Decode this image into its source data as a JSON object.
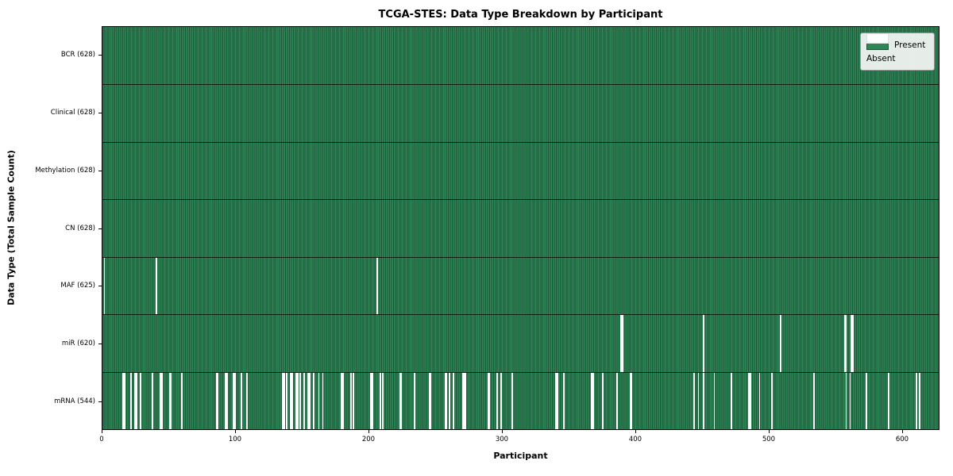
{
  "title": "TCGA-STES: Data Type Breakdown by Participant",
  "xlabel": "Participant",
  "ylabel": "Data Type (Total Sample Count)",
  "legend": {
    "present_label": "Present",
    "absent_label": "Absent"
  },
  "colors": {
    "present": "#2e8657",
    "present_edge": "#1d5737",
    "absent": "#ffffff",
    "legend_bg": "#f3f4f3",
    "text": "#000000"
  },
  "chart_data": {
    "type": "heatmap",
    "title": "TCGA-STES: Data Type Breakdown by Participant",
    "xlabel": "Participant",
    "ylabel": "Data Type (Total Sample Count)",
    "legend": [
      "Present",
      "Absent"
    ],
    "legend_position": "upper right",
    "grid": false,
    "xlim": [
      0,
      628
    ],
    "total_participants": 628,
    "x_ticks": [
      0,
      100,
      200,
      300,
      400,
      500,
      600
    ],
    "x_tick_labels": [
      "0",
      "100",
      "200",
      "300",
      "400",
      "500",
      "600"
    ],
    "rows": [
      {
        "data_type": "BCR",
        "label": "BCR (628)",
        "present_count": 628,
        "absent_count": 0,
        "absent_participants": []
      },
      {
        "data_type": "Clinical",
        "label": "Clinical (628)",
        "present_count": 628,
        "absent_count": 0,
        "absent_participants": []
      },
      {
        "data_type": "Methylation",
        "label": "Methylation (628)",
        "present_count": 628,
        "absent_count": 0,
        "absent_participants": []
      },
      {
        "data_type": "CN",
        "label": "CN (628)",
        "present_count": 628,
        "absent_count": 0,
        "absent_participants": []
      },
      {
        "data_type": "MAF",
        "label": "MAF (625)",
        "present_count": 625,
        "absent_count": 3,
        "absent_participants": [
          1,
          40,
          206
        ]
      },
      {
        "data_type": "miR",
        "label": "miR (620)",
        "present_count": 620,
        "absent_count": 8,
        "absent_participants": [
          389,
          390,
          451,
          509,
          557,
          558,
          562,
          563
        ]
      },
      {
        "data_type": "mRNA",
        "label": "mRNA (544)",
        "present_count": 544,
        "absent_count": 84,
        "absent_participants": [
          15,
          16,
          21,
          24,
          25,
          28,
          37,
          43,
          44,
          50,
          51,
          59,
          85,
          86,
          92,
          93,
          98,
          99,
          104,
          108,
          135,
          136,
          138,
          141,
          142,
          145,
          146,
          148,
          151,
          154,
          155,
          158,
          162,
          165,
          179,
          180,
          186,
          188,
          201,
          202,
          208,
          210,
          223,
          224,
          234,
          245,
          246,
          257,
          258,
          260,
          263,
          270,
          271,
          272,
          289,
          290,
          296,
          299,
          307,
          340,
          341,
          346,
          367,
          368,
          375,
          386,
          396,
          397,
          444,
          447,
          451,
          459,
          472,
          485,
          486,
          493,
          502,
          534,
          558,
          561,
          573,
          590,
          611,
          613
        ]
      }
    ]
  }
}
